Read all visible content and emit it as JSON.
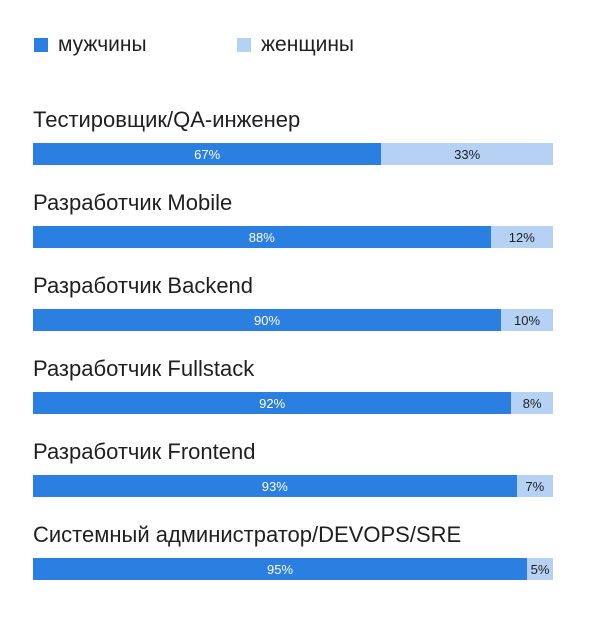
{
  "legend": {
    "items": [
      {
        "label": "мужчины",
        "color": "#2b7fe0"
      },
      {
        "label": "женщины",
        "color": "#b5d1f4"
      }
    ]
  },
  "chart_data": {
    "type": "bar",
    "orientation": "horizontal",
    "stacked": true,
    "categories": [
      "Тестировщик/QA-инженер",
      "Разработчик Mobile",
      "Разработчик Backend",
      "Разработчик Fullstack",
      "Разработчик Frontend",
      "Системный администратор/DEVOPS/SRE"
    ],
    "series": [
      {
        "name": "мужчины",
        "color": "#2b7fe0",
        "values": [
          67,
          88,
          90,
          92,
          93,
          95
        ]
      },
      {
        "name": "женщины",
        "color": "#b5d1f4",
        "values": [
          33,
          12,
          10,
          8,
          7,
          5
        ]
      }
    ],
    "value_labels": [
      [
        "67%",
        "88%",
        "90%",
        "92%",
        "93%",
        "95%"
      ],
      [
        "33%",
        "12%",
        "10%",
        "8%",
        "7%",
        "5%"
      ]
    ],
    "xlim": [
      0,
      100
    ],
    "grid": false,
    "legend_position": "top-left"
  }
}
